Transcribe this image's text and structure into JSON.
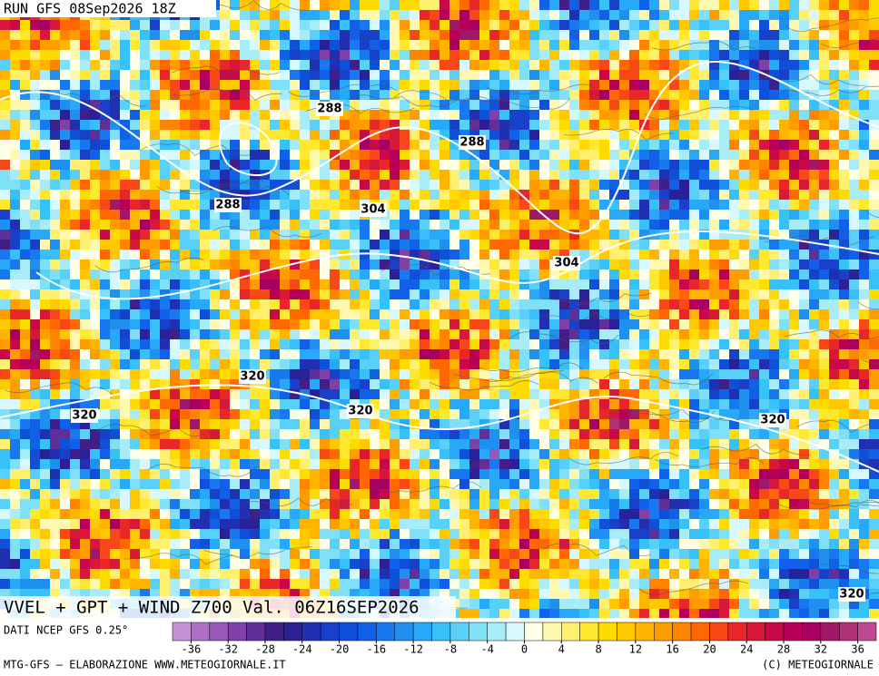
{
  "header": {
    "run": "RUN GFS 08Sep2026 18Z"
  },
  "map": {
    "contour_labels": [
      288,
      288,
      288,
      304,
      304,
      320,
      320,
      320,
      320,
      320
    ]
  },
  "title": "VVEL + GPT + WIND Z700 Val. 06Z16SEP2026",
  "colorbar": {
    "source": "DATI NCEP GFS 0.25°",
    "ticks": [
      -36,
      -32,
      -28,
      -24,
      -20,
      -16,
      -12,
      -8,
      -4,
      0,
      4,
      8,
      12,
      16,
      20,
      24,
      28,
      32,
      36
    ],
    "colors": [
      "#c890d8",
      "#b070c8",
      "#9858b8",
      "#8040a8",
      "#603098",
      "#402088",
      "#2a2098",
      "#2030b0",
      "#1840c8",
      "#1050d8",
      "#1060e8",
      "#1878f0",
      "#2090f0",
      "#28a8f8",
      "#38c0f8",
      "#58d0f8",
      "#80e0f8",
      "#a8ecf8",
      "#d8f8ff",
      "#ffffe8",
      "#fff8b0",
      "#fff070",
      "#ffe830",
      "#ffdc00",
      "#ffc800",
      "#ffb400",
      "#ff9c00",
      "#ff8400",
      "#ff6800",
      "#f84818",
      "#e82828",
      "#d81838",
      "#c80848",
      "#b80058",
      "#a80060",
      "#a01868",
      "#b03078",
      "#c04890"
    ]
  },
  "footer": {
    "left": "MTG-GFS — ELABORAZIONE WWW.METEOGIORNALE.IT",
    "right": "(C) METEOGIORNALE"
  }
}
